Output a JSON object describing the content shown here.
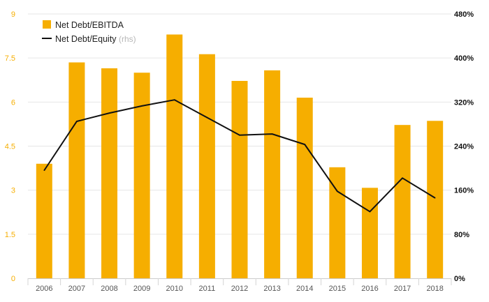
{
  "chart_data": {
    "type": "bar",
    "categories": [
      "2006",
      "2007",
      "2008",
      "2009",
      "2010",
      "2011",
      "2012",
      "2013",
      "2014",
      "2015",
      "2016",
      "2017",
      "2018"
    ],
    "series": [
      {
        "name": "Net Debt/EBITDA",
        "type": "bar",
        "axis": "left",
        "color": "#f6ae00",
        "values": [
          3.9,
          7.35,
          7.15,
          7.0,
          8.3,
          7.63,
          6.72,
          7.08,
          6.15,
          3.78,
          3.08,
          5.22,
          5.36
        ]
      },
      {
        "name": "Net Debt/Equity",
        "note": "(rhs)",
        "type": "line",
        "axis": "right",
        "color": "#111111",
        "values": [
          196,
          285,
          300,
          313,
          324,
          292,
          260,
          262,
          243,
          158,
          121,
          182,
          146
        ]
      }
    ],
    "y_left": {
      "ylim": [
        0,
        9
      ],
      "ticks": [
        "0",
        "1.5",
        "3",
        "4.5",
        "6",
        "7.5",
        "9"
      ]
    },
    "y_right": {
      "ylim": [
        0,
        480
      ],
      "ticks": [
        "0%",
        "80%",
        "160%",
        "240%",
        "320%",
        "400%",
        "480%"
      ]
    },
    "legend": {
      "placement": "top-left"
    },
    "grid": true
  }
}
